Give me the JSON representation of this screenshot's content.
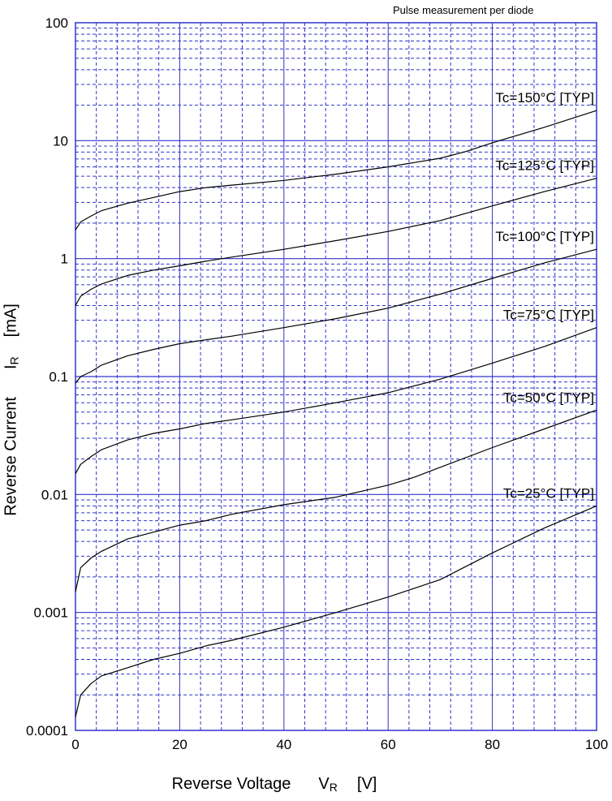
{
  "note": "Pulse measurement per diode",
  "chart_data": {
    "type": "line",
    "title": "",
    "xlabel": {
      "name": "Reverse Voltage",
      "symbol": "V",
      "subscript": "R",
      "unit": "[V]"
    },
    "ylabel": {
      "name": "Reverse Current",
      "symbol": "I",
      "subscript": "R",
      "unit": "[mA]"
    },
    "xlim": [
      0,
      100
    ],
    "ylim": [
      0.0001,
      100
    ],
    "yscale": "log",
    "grid": true,
    "xticks": [
      "0",
      "20",
      "40",
      "60",
      "80",
      "100"
    ],
    "yticks": [
      "0.0001",
      "0.001",
      "0.01",
      "0.1",
      "1",
      "10",
      "100"
    ],
    "colors": {
      "grid": "#3333cc",
      "curve": "#000000"
    },
    "series": [
      {
        "name": "Tc=150°C [TYP]",
        "points": [
          [
            0,
            1.75
          ],
          [
            1,
            2.05
          ],
          [
            3,
            2.3
          ],
          [
            5,
            2.55
          ],
          [
            10,
            2.95
          ],
          [
            15,
            3.3
          ],
          [
            20,
            3.7
          ],
          [
            25,
            4.0
          ],
          [
            30,
            4.2
          ],
          [
            40,
            4.6
          ],
          [
            50,
            5.2
          ],
          [
            60,
            6.0
          ],
          [
            70,
            7.1
          ],
          [
            75,
            8.1
          ],
          [
            80,
            9.6
          ],
          [
            90,
            13.0
          ],
          [
            100,
            18.0
          ]
        ]
      },
      {
        "name": "Tc=125°C [TYP]",
        "points": [
          [
            0,
            0.4
          ],
          [
            1,
            0.48
          ],
          [
            3,
            0.55
          ],
          [
            5,
            0.61
          ],
          [
            10,
            0.72
          ],
          [
            15,
            0.8
          ],
          [
            20,
            0.87
          ],
          [
            25,
            0.95
          ],
          [
            30,
            1.03
          ],
          [
            40,
            1.2
          ],
          [
            50,
            1.42
          ],
          [
            60,
            1.7
          ],
          [
            70,
            2.1
          ],
          [
            80,
            2.8
          ],
          [
            90,
            3.7
          ],
          [
            100,
            4.8
          ]
        ]
      },
      {
        "name": "Tc=100°C [TYP]",
        "points": [
          [
            0,
            0.088
          ],
          [
            1,
            0.1
          ],
          [
            3,
            0.11
          ],
          [
            5,
            0.125
          ],
          [
            10,
            0.15
          ],
          [
            15,
            0.17
          ],
          [
            20,
            0.19
          ],
          [
            25,
            0.205
          ],
          [
            30,
            0.22
          ],
          [
            40,
            0.26
          ],
          [
            50,
            0.31
          ],
          [
            60,
            0.38
          ],
          [
            70,
            0.5
          ],
          [
            80,
            0.68
          ],
          [
            90,
            0.92
          ],
          [
            100,
            1.2
          ]
        ]
      },
      {
        "name": "Tc=75°C [TYP]",
        "points": [
          [
            0,
            0.015
          ],
          [
            1,
            0.018
          ],
          [
            3,
            0.021
          ],
          [
            5,
            0.024
          ],
          [
            10,
            0.029
          ],
          [
            15,
            0.033
          ],
          [
            20,
            0.036
          ],
          [
            25,
            0.04
          ],
          [
            30,
            0.043
          ],
          [
            40,
            0.05
          ],
          [
            50,
            0.06
          ],
          [
            60,
            0.073
          ],
          [
            70,
            0.095
          ],
          [
            80,
            0.13
          ],
          [
            90,
            0.18
          ],
          [
            100,
            0.26
          ]
        ]
      },
      {
        "name": "Tc=50°C [TYP]",
        "points": [
          [
            0,
            0.0015
          ],
          [
            1,
            0.0024
          ],
          [
            3,
            0.0029
          ],
          [
            5,
            0.0033
          ],
          [
            10,
            0.0042
          ],
          [
            15,
            0.0048
          ],
          [
            20,
            0.0055
          ],
          [
            25,
            0.006
          ],
          [
            30,
            0.0068
          ],
          [
            40,
            0.0082
          ],
          [
            50,
            0.0095
          ],
          [
            60,
            0.012
          ],
          [
            65,
            0.014
          ],
          [
            70,
            0.017
          ],
          [
            80,
            0.025
          ],
          [
            90,
            0.036
          ],
          [
            100,
            0.052
          ]
        ]
      },
      {
        "name": "Tc=25°C [TYP]",
        "points": [
          [
            0,
            0.00013
          ],
          [
            1,
            0.0002
          ],
          [
            3,
            0.00025
          ],
          [
            5,
            0.00029
          ],
          [
            10,
            0.00034
          ],
          [
            15,
            0.0004
          ],
          [
            20,
            0.00045
          ],
          [
            25,
            0.00052
          ],
          [
            30,
            0.00058
          ],
          [
            40,
            0.00075
          ],
          [
            50,
            0.001
          ],
          [
            60,
            0.00135
          ],
          [
            70,
            0.0019
          ],
          [
            80,
            0.0032
          ],
          [
            90,
            0.0052
          ],
          [
            100,
            0.008
          ]
        ]
      }
    ]
  }
}
